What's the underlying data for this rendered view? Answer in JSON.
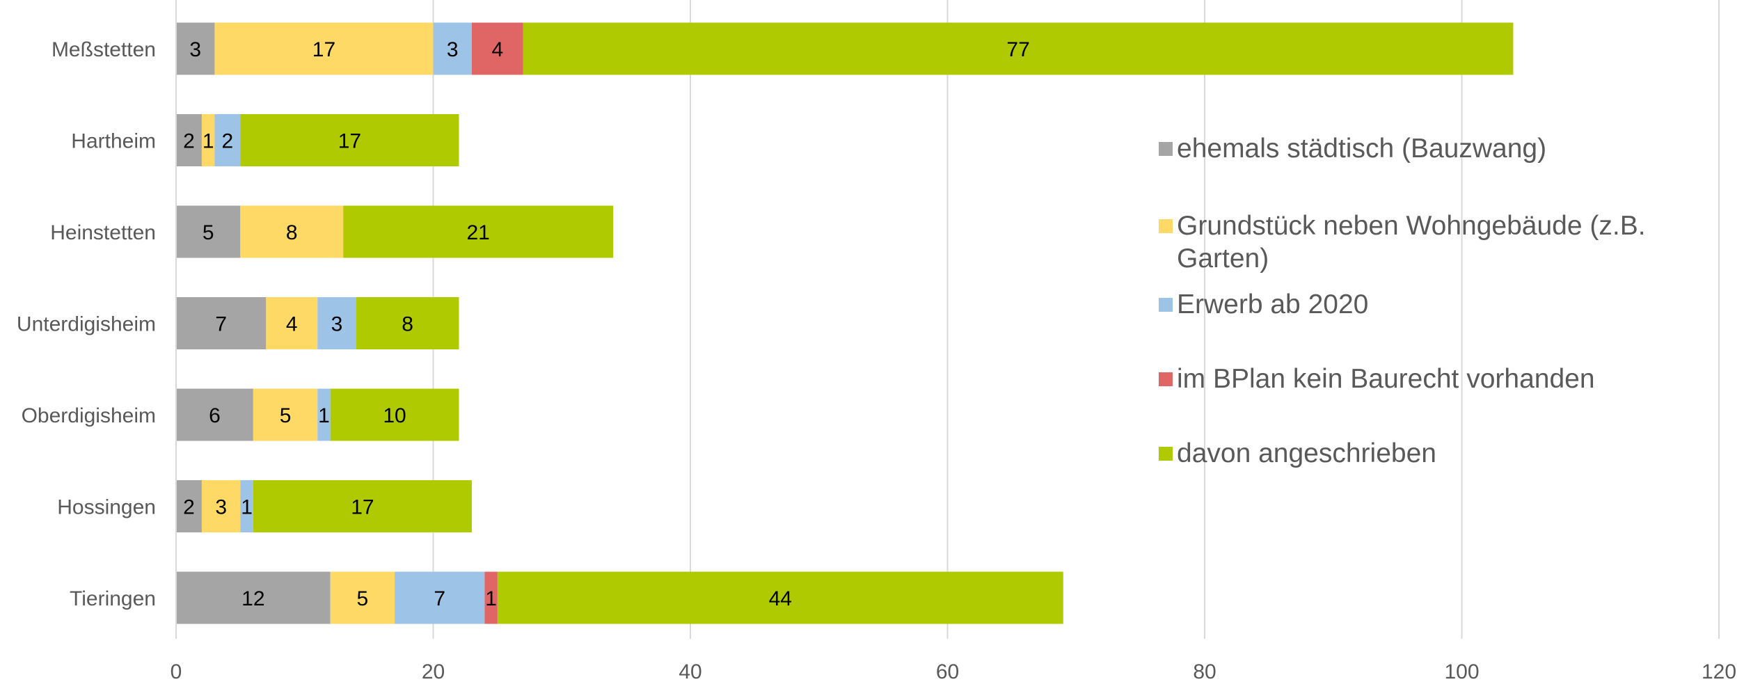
{
  "chart_data": {
    "type": "bar",
    "orientation": "horizontal",
    "stacked": true,
    "categories": [
      "Meßstetten",
      "Hartheim",
      "Heinstetten",
      "Unterdigisheim",
      "Oberdigisheim",
      "Hossingen",
      "Tieringen"
    ],
    "series": [
      {
        "name": "ehemals städtisch (Bauzwang)",
        "values": [
          3,
          2,
          5,
          7,
          6,
          2,
          12
        ],
        "color": "#A5A5A5"
      },
      {
        "name": "Grundstück neben Wohngebäude (z.B. Garten)",
        "values": [
          17,
          1,
          8,
          4,
          5,
          3,
          5
        ],
        "color": "#FFD966"
      },
      {
        "name": "Erwerb ab 2020",
        "values": [
          3,
          2,
          0,
          3,
          1,
          1,
          7
        ],
        "color": "#9DC3E6"
      },
      {
        "name": "im BPlan kein Baurecht vorhanden",
        "values": [
          4,
          0,
          0,
          0,
          0,
          0,
          1
        ],
        "color": "#E06666"
      },
      {
        "name": "davon angeschrieben",
        "values": [
          77,
          17,
          21,
          8,
          10,
          17,
          44
        ],
        "color": "#AFCA00"
      }
    ],
    "xlim": [
      0,
      120
    ],
    "xticks": [
      0,
      20,
      40,
      60,
      80,
      100,
      120
    ],
    "data_labels": true,
    "grid": "vertical",
    "legend_position": "right",
    "title": "",
    "xlabel": "",
    "ylabel": ""
  },
  "colors": {
    "grid": "#D9D9D9",
    "axis_text": "#595959",
    "data_label": "#000000"
  }
}
